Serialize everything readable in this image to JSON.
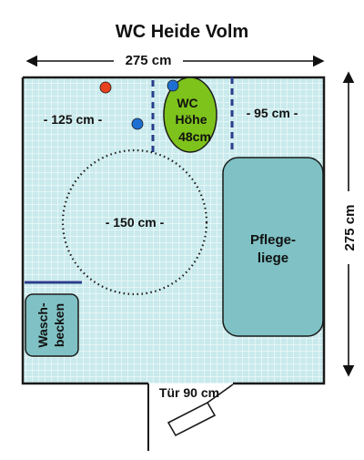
{
  "title": "WC Heide Volm",
  "dimensions": {
    "width_top": "275 cm",
    "height_right": "275 cm",
    "left_span": "- 125 cm -",
    "right_span": "- 95 cm -",
    "turning_circle": "- 150 cm -",
    "door": "Tür 90  cm"
  },
  "wc": {
    "line1": "WC",
    "line2": "Höhe",
    "line3": "48cm"
  },
  "care_bed": {
    "line1": "Pflege-",
    "line2": "liege"
  },
  "washbasin": {
    "line1": "Wasch-",
    "line2": "becken"
  },
  "colors": {
    "floor": "#c9eaec",
    "grid": "#ffffff",
    "wall": "#1a1a1a",
    "wc_fill": "#7ec31c",
    "furniture_fill": "#7fc1c4",
    "marker_red": "#e8411e",
    "marker_blue": "#1e6fd2",
    "rail": "#283e8c"
  }
}
